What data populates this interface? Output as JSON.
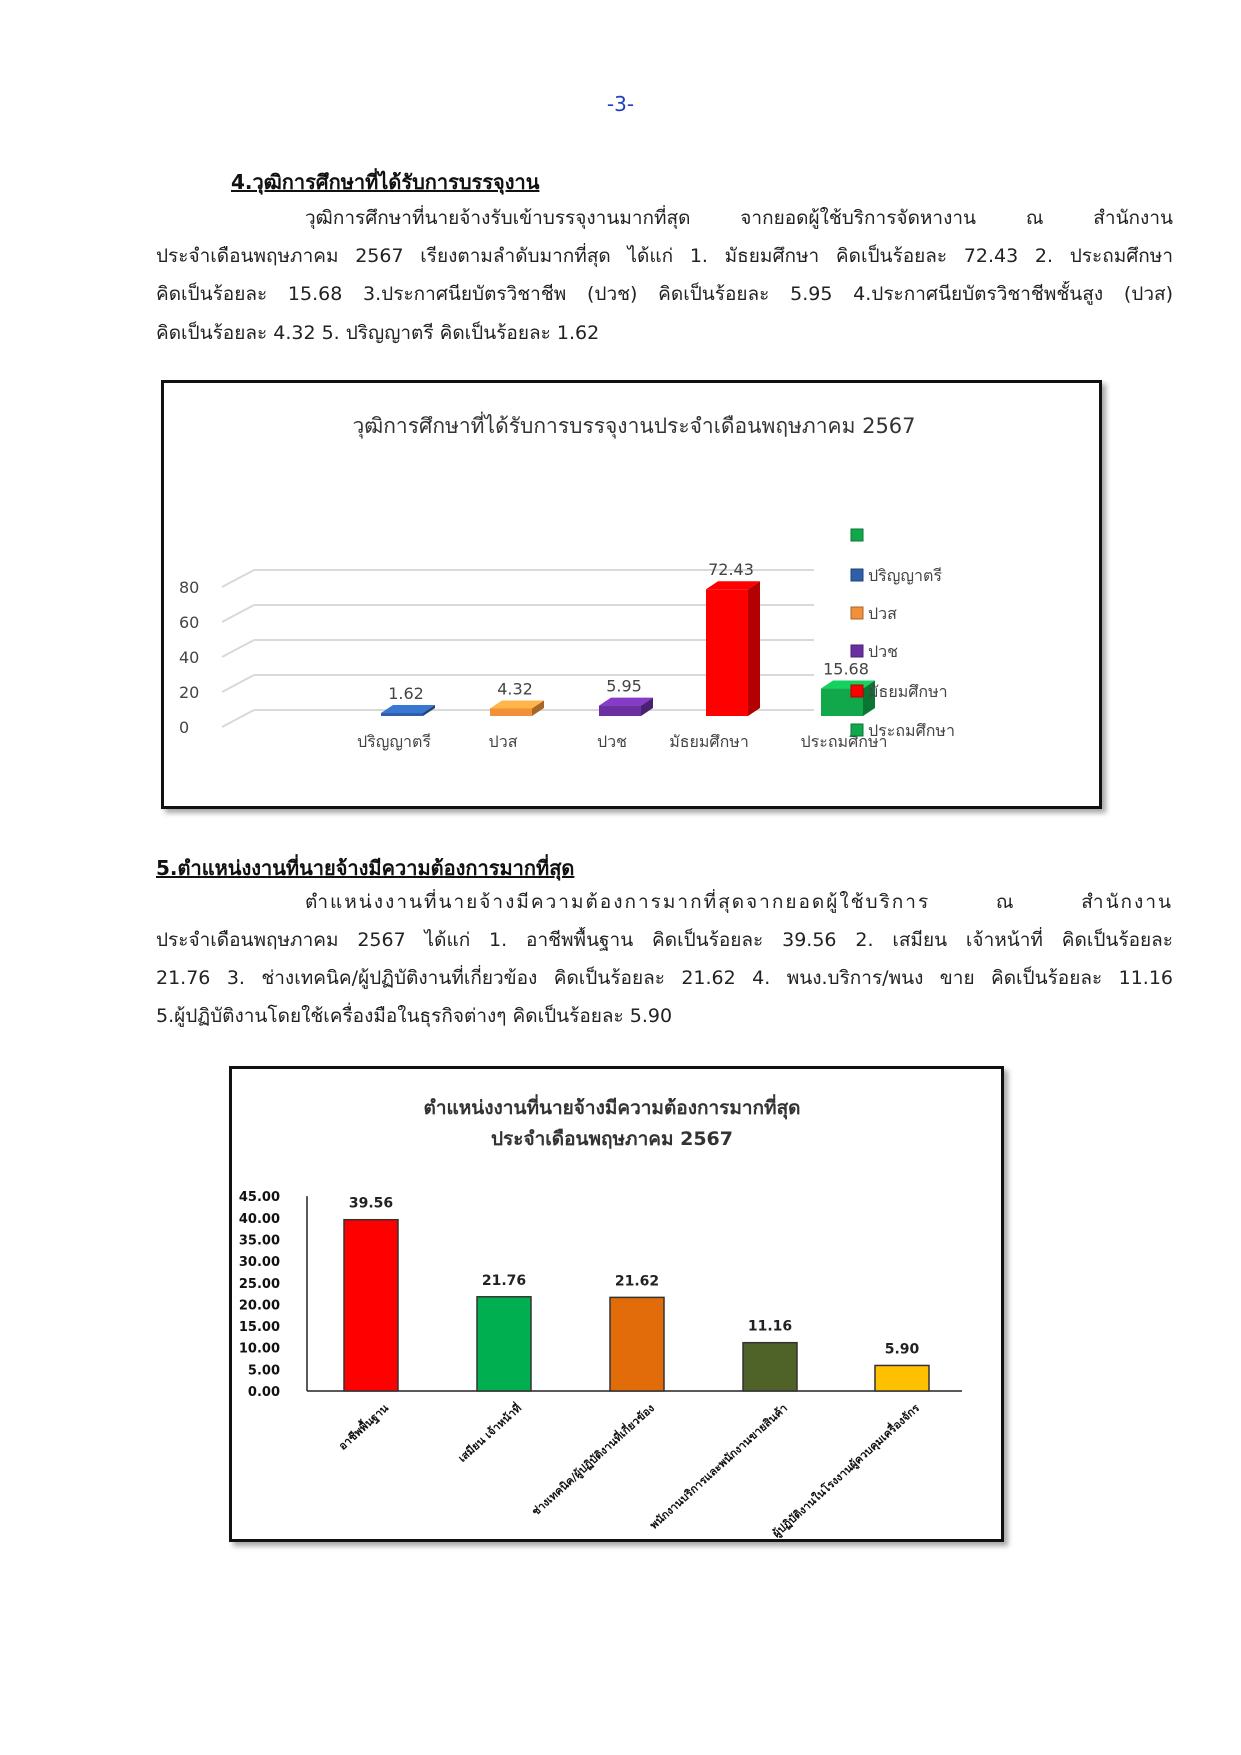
{
  "page_number": "-3-",
  "section4": {
    "heading": "4.วุฒิการศึกษาที่ได้รับการบรรจุงาน",
    "lines": [
      "วุฒิการศึกษาที่นายจ้างรับเข้าบรรจุงานมากที่สุด จากยอดผู้ใช้บริการจัดหางาน ณ สำนักงาน",
      "ประจำเดือนพฤษภาคม 2567  เรียงตามลำดับมากที่สุด  ได้แก่ 1. มัธยมศึกษา คิดเป็นร้อยละ 72.43 2. ประถมศึกษา",
      "คิดเป็นร้อยละ 15.68 3.ประกาศนียบัตรวิชาชีพ (ปวช)  คิดเป็นร้อยละ 5.95  4.ประกาศนียบัตรวิชาชีพชั้นสูง (ปวส)",
      "คิดเป็นร้อยละ 4.32  5. ปริญญาตรี คิดเป็นร้อยละ 1.62"
    ]
  },
  "section5": {
    "heading": "5.ตำแหน่งงานที่นายจ้างมีความต้องการมากที่สุด",
    "lines": [
      "ตำแหน่งงานที่นายจ้างมีความต้องการมากที่สุดจากยอดผู้ใช้บริการ ณ สำนักงาน",
      "ประจำเดือนพฤษภาคม 2567 ได้แก่ 1. อาชีพพื้นฐาน  คิดเป็นร้อยละ 39.56  2. เสมียน  เจ้าหน้าที่ คิดเป็นร้อยละ",
      "21.76 3. ช่างเทคนิค/ผู้ปฏิบัติงานที่เกี่ยวข้อง คิดเป็นร้อยละ 21.62 4. พนง.บริการ/พนง ขาย คิดเป็นร้อยละ  11.16",
      "5.ผู้ปฏิบัติงานโดยใช้เครื่องมือในธุรกิจต่างๆ คิดเป็นร้อยละ 5.90"
    ]
  },
  "chart_data": [
    {
      "type": "bar",
      "style": "3d-column",
      "title": "วุฒิการศึกษาที่ได้รับการบรรจุงานประจำเดือนพฤษภาคม 2567",
      "categories": [
        "ปริญญาตรี",
        "ปวส",
        "ปวช",
        "มัธยมศึกษา",
        "ประถมศึกษา"
      ],
      "values": [
        1.62,
        4.32,
        5.95,
        72.43,
        15.68
      ],
      "data_labels": [
        "1.62",
        "4.32",
        "5.95",
        "72.43",
        "15.68"
      ],
      "colors": [
        "#2e5fa8",
        "#f0913a",
        "#6a2fa0",
        "#ff0000",
        "#10a84a"
      ],
      "ylim": [
        0,
        80
      ],
      "yticks": [
        "0",
        "20",
        "40",
        "60",
        "80"
      ],
      "grid": true,
      "legend_position": "right",
      "legend": [
        {
          "label": "",
          "color": "#10a84a"
        },
        {
          "label": "ปริญญาตรี",
          "color": "#2e5fa8"
        },
        {
          "label": "ปวส",
          "color": "#f0913a"
        },
        {
          "label": "ปวช",
          "color": "#6a2fa0"
        },
        {
          "label": "มัธยมศึกษา",
          "color": "#ff0000"
        },
        {
          "label": "ประถมศึกษา",
          "color": "#10a84a"
        }
      ]
    },
    {
      "type": "bar",
      "title": "ตำแหน่งงานที่นายจ้างมีความต้องการมากที่สุด",
      "subtitle": "ประจำเดือนพฤษภาคม 2567",
      "categories": [
        "อาชีพพื้นฐาน",
        "เสมียน  เจ้าหน้าที่",
        "ช่างเทคนิค/ผู้ปฏิบัติงานที่เกี่ยวข้อง",
        "พนักงานบริการและพนักงานขายสินค้า",
        "ผู้ปฏิบัติงานในโรงงานผู้ควบคุมเครื่องจักร"
      ],
      "values": [
        39.56,
        21.76,
        21.62,
        11.16,
        5.9
      ],
      "data_labels": [
        "39.56",
        "21.76",
        "21.62",
        "11.16",
        "5.90"
      ],
      "colors": [
        "#ff0000",
        "#00b050",
        "#e36c0a",
        "#4f6228",
        "#ffc000"
      ],
      "ylim": [
        0,
        45
      ],
      "yticks": [
        "0.00",
        "5.00",
        "10.00",
        "15.00",
        "20.00",
        "25.00",
        "30.00",
        "35.00",
        "40.00",
        "45.00"
      ],
      "grid": false
    }
  ]
}
